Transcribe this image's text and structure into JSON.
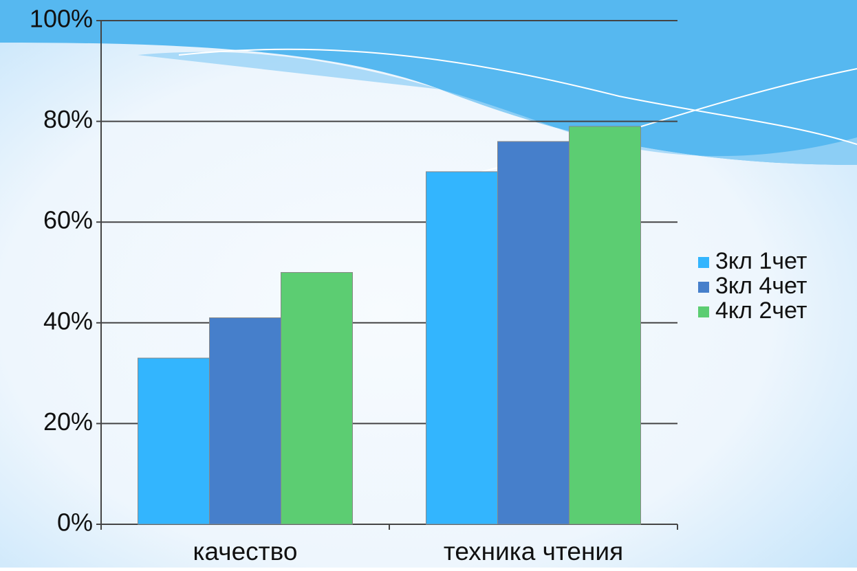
{
  "chart_data": {
    "type": "bar",
    "categories": [
      "качество",
      "техника чтения"
    ],
    "series": [
      {
        "name": "3кл 1чет",
        "color": "#33b5fe",
        "values": [
          33,
          70
        ]
      },
      {
        "name": "3кл 4чет",
        "color": "#467fcb",
        "values": [
          41,
          76
        ]
      },
      {
        "name": "4кл 2чет",
        "color": "#5ccd72",
        "values": [
          50,
          79
        ]
      }
    ],
    "ylim": [
      0,
      100
    ],
    "yticks": [
      {
        "value": 0,
        "label": "0%"
      },
      {
        "value": 20,
        "label": "20%"
      },
      {
        "value": 40,
        "label": "40%"
      },
      {
        "value": 60,
        "label": "60%"
      },
      {
        "value": 80,
        "label": "80%"
      },
      {
        "value": 100,
        "label": "100%"
      }
    ],
    "grid": true,
    "legend": "right"
  }
}
